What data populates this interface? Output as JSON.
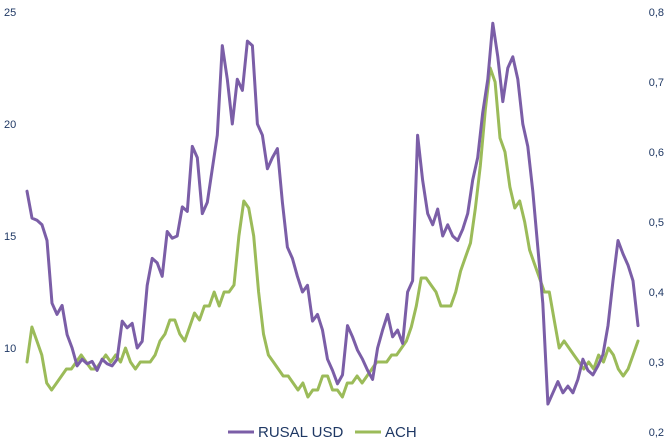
{
  "chart_data": {
    "type": "line",
    "title": "",
    "xlabel": "",
    "ylabel": "",
    "y_left": {
      "ticks": [
        "25",
        "20",
        "15",
        "10"
      ],
      "ylim": [
        6.5,
        25
      ]
    },
    "y_right": {
      "ticks": [
        "0,8",
        "0,7",
        "0,6",
        "0,5",
        "0,4",
        "0,3",
        "0,2"
      ],
      "ylim": [
        0.2,
        0.8
      ]
    },
    "grid": false,
    "legend_position": "bottom",
    "series": [
      {
        "name": "RUSAL USD",
        "axis": "left",
        "color": "#7b5ea7",
        "values": [
          17.0,
          15.8,
          15.7,
          15.5,
          14.8,
          12.0,
          11.5,
          11.9,
          10.6,
          10.0,
          9.2,
          9.5,
          9.3,
          9.4,
          9.0,
          9.5,
          9.3,
          9.2,
          9.5,
          11.2,
          10.9,
          11.1,
          10.0,
          10.3,
          12.8,
          14.0,
          13.8,
          13.2,
          15.2,
          14.9,
          15.0,
          16.3,
          16.1,
          19.0,
          18.5,
          16.0,
          16.5,
          18.0,
          19.5,
          23.5,
          22.0,
          20.0,
          22.0,
          21.5,
          23.7,
          23.5,
          20.0,
          19.5,
          18.0,
          18.5,
          18.9,
          16.5,
          14.5,
          14.0,
          13.2,
          12.5,
          12.8,
          11.2,
          11.5,
          10.8,
          9.5,
          9.0,
          8.4,
          8.8,
          11.0,
          10.5,
          9.9,
          9.5,
          9.0,
          8.6,
          10.0,
          10.8,
          11.5,
          10.5,
          10.8,
          10.2,
          12.5,
          13.0,
          19.5,
          17.5,
          16.0,
          15.5,
          16.2,
          15.0,
          15.5,
          15.0,
          14.8,
          15.3,
          16.0,
          17.5,
          18.5,
          20.5,
          22.0,
          24.5,
          23.0,
          21.0,
          22.5,
          23.0,
          22.0,
          20.0,
          19.0,
          17.0,
          14.5,
          12.0,
          7.5,
          8.0,
          8.5,
          8.0,
          8.3,
          8.0,
          8.6,
          9.5,
          9.0,
          8.8,
          9.2,
          9.7,
          11.0,
          13.0,
          14.8,
          14.2,
          13.7,
          13.0,
          11.0
        ]
      },
      {
        "name": "ACH",
        "axis": "right",
        "color": "#9bbb59",
        "values": [
          0.3,
          0.35,
          0.33,
          0.31,
          0.27,
          0.26,
          0.27,
          0.28,
          0.29,
          0.29,
          0.3,
          0.31,
          0.3,
          0.29,
          0.29,
          0.3,
          0.31,
          0.3,
          0.31,
          0.3,
          0.32,
          0.3,
          0.29,
          0.3,
          0.3,
          0.3,
          0.31,
          0.33,
          0.34,
          0.36,
          0.36,
          0.34,
          0.33,
          0.35,
          0.37,
          0.36,
          0.38,
          0.38,
          0.4,
          0.38,
          0.4,
          0.4,
          0.41,
          0.48,
          0.53,
          0.52,
          0.48,
          0.4,
          0.34,
          0.31,
          0.3,
          0.29,
          0.28,
          0.28,
          0.27,
          0.26,
          0.27,
          0.25,
          0.26,
          0.26,
          0.28,
          0.28,
          0.26,
          0.26,
          0.25,
          0.27,
          0.27,
          0.28,
          0.27,
          0.28,
          0.29,
          0.3,
          0.3,
          0.3,
          0.31,
          0.31,
          0.32,
          0.33,
          0.35,
          0.38,
          0.42,
          0.42,
          0.41,
          0.4,
          0.38,
          0.38,
          0.38,
          0.4,
          0.43,
          0.45,
          0.47,
          0.52,
          0.58,
          0.66,
          0.72,
          0.7,
          0.62,
          0.6,
          0.55,
          0.52,
          0.53,
          0.5,
          0.46,
          0.44,
          0.42,
          0.4,
          0.4,
          0.36,
          0.32,
          0.33,
          0.32,
          0.31,
          0.3,
          0.29,
          0.3,
          0.29,
          0.31,
          0.3,
          0.32,
          0.31,
          0.29,
          0.28,
          0.29,
          0.31,
          0.33
        ]
      }
    ]
  }
}
